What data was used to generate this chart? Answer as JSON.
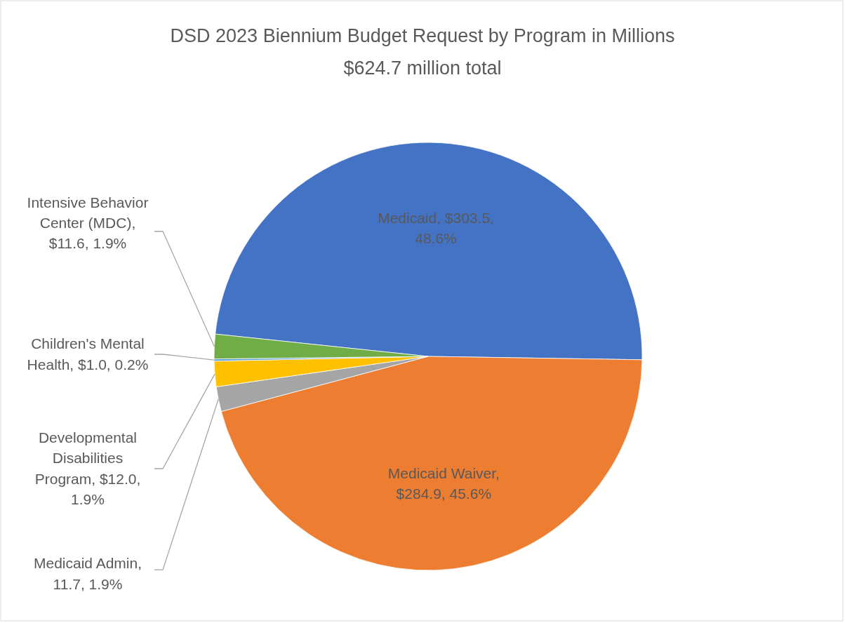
{
  "chart_data": {
    "type": "pie",
    "title": "DSD 2023 Biennium Budget Request by Program in Millions",
    "subtitle": "$624.7 million total",
    "categories": [
      "Medicaid",
      "Medicaid Waiver",
      "Medicaid Admin",
      "Developmental Disabilities Program",
      "Children's Mental Health",
      "Intensive Behavior Center (MDC)"
    ],
    "values": [
      303.5,
      284.9,
      11.7,
      12.0,
      1.0,
      11.6
    ],
    "value_labels": [
      ", $303.5, 48.6%",
      ", $284.9, 45.6%",
      ", 11.7, 1.9%",
      ", $12.0, 1.9%",
      ", $1.0, 0.2%",
      ", $11.6, 1.9%"
    ],
    "colors": [
      "#4472c4",
      "#ed7d31",
      "#a5a5a5",
      "#ffc000",
      "#5b9bd5",
      "#70ad47"
    ]
  }
}
